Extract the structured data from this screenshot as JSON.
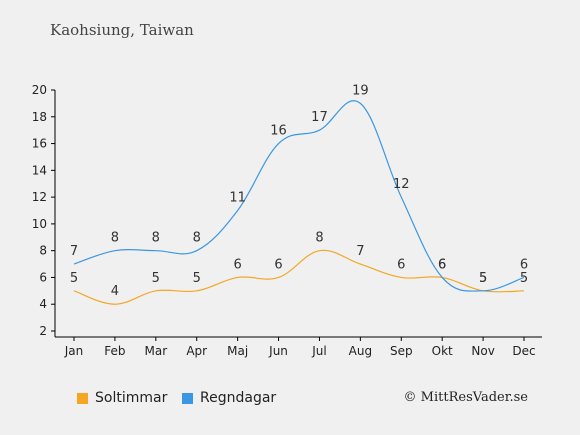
{
  "header": {
    "title": "Kaohsiung, Taiwan"
  },
  "credit": "© MittResVader.se",
  "colors": {
    "sun": "#f5a623",
    "rain": "#3b97e3",
    "axis": "#000000",
    "background": "#f0f0f0"
  },
  "chart_data": {
    "type": "line",
    "title": "Kaohsiung, Taiwan",
    "xlabel": "",
    "ylabel": "",
    "categories": [
      "Jan",
      "Feb",
      "Mar",
      "Apr",
      "Maj",
      "Jun",
      "Jul",
      "Aug",
      "Sep",
      "Okt",
      "Nov",
      "Dec"
    ],
    "ylim": [
      2,
      20
    ],
    "yticks": [
      2,
      4,
      6,
      8,
      10,
      12,
      14,
      16,
      18,
      20
    ],
    "grid": false,
    "legend_position": "bottom-left",
    "series": [
      {
        "name": "Soltimmar",
        "color": "#f5a623",
        "values": [
          5,
          4,
          5,
          5,
          6,
          6,
          8,
          7,
          6,
          6,
          5,
          5
        ]
      },
      {
        "name": "Regndagar",
        "color": "#3b97e3",
        "values": [
          7,
          8,
          8,
          8,
          11,
          16,
          17,
          19,
          12,
          6,
          5,
          6
        ]
      }
    ]
  }
}
